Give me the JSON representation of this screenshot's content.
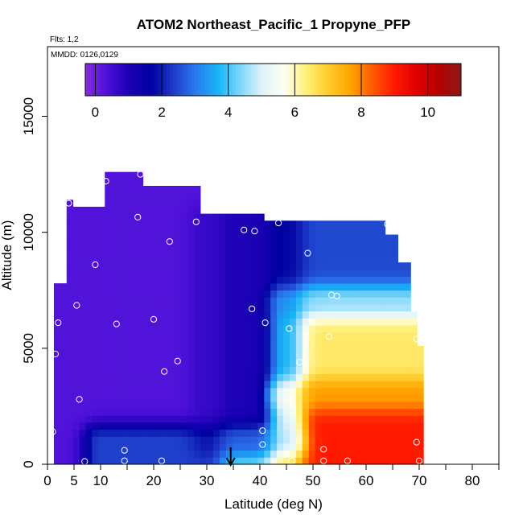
{
  "chart_data": {
    "type": "heatmap",
    "title": "ATOM2 Northeast_Pacific_1 Propyne_PFP",
    "flights_label": "Flts: 1,2",
    "dates_label": "MMDD: 0126,0129",
    "xlabel": "Latitude (deg N)",
    "ylabel": "Altitude (m)",
    "xlim": [
      0,
      85
    ],
    "ylim": [
      0,
      18000
    ],
    "x_ticks": [
      0,
      5,
      10,
      20,
      30,
      40,
      50,
      60,
      70,
      80
    ],
    "y_ticks": [
      0,
      5000,
      10000,
      15000
    ],
    "colorbar": {
      "min": -0.3,
      "max": 11,
      "ticks": [
        0,
        2,
        4,
        6,
        8,
        10
      ],
      "colors": [
        "#8a2be2",
        "#4b10d8",
        "#1a00b4",
        "#0000a0",
        "#1e3cc8",
        "#2a7af0",
        "#16b4f5",
        "#7ed6fa",
        "#dff3fb",
        "#fffff0",
        "#fff07a",
        "#ffcc2a",
        "#ffa500",
        "#ff5a00",
        "#ff1800",
        "#e00000",
        "#b40000",
        "#8b1a1a"
      ]
    },
    "regions": [
      {
        "lat_min": 0,
        "lat_max": 30,
        "alt_min": 0,
        "alt_max": 12500,
        "value": 0.3
      },
      {
        "lat_min": 30,
        "lat_max": 45,
        "alt_min": 1000,
        "alt_max": 10500,
        "value": 1.0
      },
      {
        "lat_min": 45,
        "lat_max": 70,
        "alt_min": 7000,
        "alt_max": 10500,
        "value": 2.5
      },
      {
        "lat_min": 45,
        "lat_max": 70,
        "alt_min": 3000,
        "alt_max": 7000,
        "value": 6.5
      },
      {
        "lat_min": 45,
        "lat_max": 70,
        "alt_min": 0,
        "alt_max": 3000,
        "value": 9.0
      },
      {
        "lat_min": 10,
        "lat_max": 45,
        "alt_min": 0,
        "alt_max": 1000,
        "value": 4.5
      }
    ],
    "samples": [
      {
        "lat": 0.5,
        "alt": 150
      },
      {
        "lat": 7,
        "alt": 120
      },
      {
        "lat": 14.5,
        "alt": 150
      },
      {
        "lat": 21.5,
        "alt": 150
      },
      {
        "lat": 46,
        "alt": 150
      },
      {
        "lat": 52,
        "alt": 150
      },
      {
        "lat": 56.5,
        "alt": 150
      },
      {
        "lat": 70,
        "alt": 150
      },
      {
        "lat": 14.5,
        "alt": 600
      },
      {
        "lat": 40.5,
        "alt": 850
      },
      {
        "lat": 52,
        "alt": 650
      },
      {
        "lat": 69.5,
        "alt": 950
      },
      {
        "lat": 40.5,
        "alt": 1450
      },
      {
        "lat": 1,
        "alt": 1400
      },
      {
        "lat": 6,
        "alt": 2800
      },
      {
        "lat": 45.5,
        "alt": 2800
      },
      {
        "lat": 22,
        "alt": 4000
      },
      {
        "lat": 24.5,
        "alt": 4450
      },
      {
        "lat": 47.5,
        "alt": 4400
      },
      {
        "lat": 1.5,
        "alt": 4750
      },
      {
        "lat": 53,
        "alt": 5500
      },
      {
        "lat": 69.5,
        "alt": 5400
      },
      {
        "lat": 45.5,
        "alt": 5850
      },
      {
        "lat": 2,
        "alt": 6100
      },
      {
        "lat": 13,
        "alt": 6050
      },
      {
        "lat": 20,
        "alt": 6250
      },
      {
        "lat": 41,
        "alt": 6100
      },
      {
        "lat": 5.5,
        "alt": 6850
      },
      {
        "lat": 38.5,
        "alt": 6700
      },
      {
        "lat": 53.5,
        "alt": 7300
      },
      {
        "lat": 54.5,
        "alt": 7250
      },
      {
        "lat": 9,
        "alt": 8600
      },
      {
        "lat": 49,
        "alt": 9100
      },
      {
        "lat": 23,
        "alt": 9600
      },
      {
        "lat": 37,
        "alt": 10100
      },
      {
        "lat": 39,
        "alt": 10050
      },
      {
        "lat": 2,
        "alt": 10300
      },
      {
        "lat": 28,
        "alt": 10450
      },
      {
        "lat": 43.5,
        "alt": 10400
      },
      {
        "lat": 64,
        "alt": 10350
      },
      {
        "lat": 17,
        "alt": 10650
      },
      {
        "lat": 4,
        "alt": 11250
      },
      {
        "lat": 5.5,
        "alt": 11250
      },
      {
        "lat": 11,
        "alt": 12200
      },
      {
        "lat": 17.5,
        "alt": 12500
      }
    ],
    "marker_lat": 34.5,
    "grid": false
  }
}
